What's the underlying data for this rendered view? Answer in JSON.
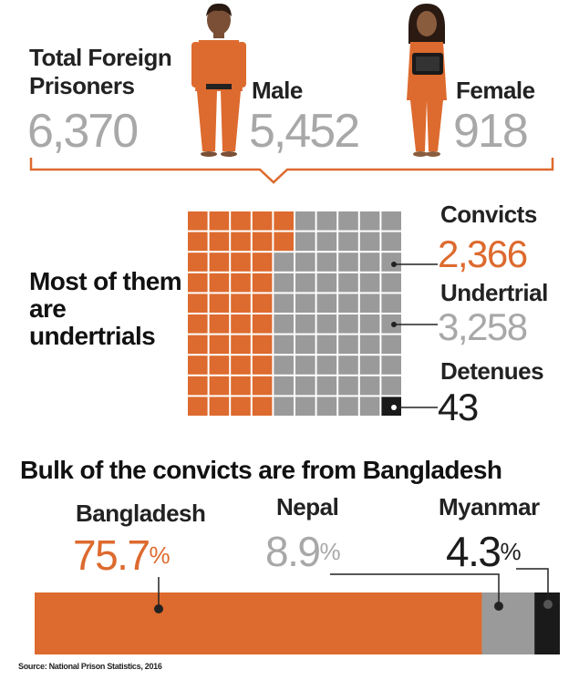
{
  "totals": {
    "total_label": "Total Foreign Prisoners",
    "total_value": "6,370",
    "male_label": "Male",
    "male_value": "5,452",
    "female_label": "Female",
    "female_value": "918"
  },
  "grid_section": {
    "headline": "Most of them are undertrials",
    "convicts_label": "Convicts",
    "convicts_value": "2,366",
    "undertrial_label": "Undertrial",
    "undertrial_value": "3,258",
    "detenues_label": "Detenues",
    "detenues_value": "43"
  },
  "bar_section": {
    "headline": "Bulk of the convicts are from Bangladesh",
    "countries": [
      {
        "name": "Bangladesh",
        "value": "75.7",
        "unit": "%"
      },
      {
        "name": "Nepal",
        "value": "8.9",
        "unit": "%"
      },
      {
        "name": "Myanmar",
        "value": "4.3",
        "unit": "%"
      }
    ]
  },
  "source": "Source: National Prison Statistics, 2016",
  "colors": {
    "orange": "#dd6a2e",
    "grey": "#9a9a9a",
    "dark": "#1a1a1a",
    "text_grey": "#a8a8a8"
  },
  "chart_data": [
    {
      "type": "bar",
      "title": "Most of them are undertrials",
      "categories": [
        "Convicts",
        "Undertrial",
        "Detenues"
      ],
      "values": [
        2366,
        3258,
        43
      ]
    },
    {
      "type": "bar",
      "title": "Bulk of the convicts are from Bangladesh",
      "categories": [
        "Bangladesh",
        "Nepal",
        "Myanmar"
      ],
      "values": [
        75.7,
        8.9,
        4.3
      ],
      "unit": "%"
    }
  ]
}
